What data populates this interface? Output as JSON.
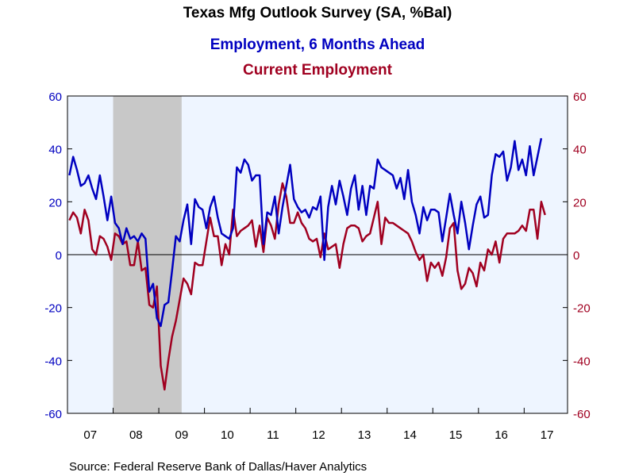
{
  "chart_data": {
    "type": "line",
    "title": "Texas Mfg Outlook Survey (SA, %Bal)",
    "source": "Source:  Federal Reserve Bank of Dallas/Haver Analytics",
    "ylim": [
      -60,
      60
    ],
    "y_ticks": [
      60,
      40,
      20,
      0,
      -20,
      -40,
      -60
    ],
    "y_tick_labels": [
      "60",
      "40",
      "20",
      "0",
      "-20",
      "-40",
      "-60"
    ],
    "xlim": [
      2007.0,
      2017.95
    ],
    "x_ticks": [
      {
        "label": "07",
        "year": 2007
      },
      {
        "label": "08",
        "year": 2008
      },
      {
        "label": "09",
        "year": 2009
      },
      {
        "label": "10",
        "year": 2010
      },
      {
        "label": "11",
        "year": 2011
      },
      {
        "label": "12",
        "year": 2012
      },
      {
        "label": "13",
        "year": 2013
      },
      {
        "label": "14",
        "year": 2014
      },
      {
        "label": "15",
        "year": 2015
      },
      {
        "label": "16",
        "year": 2016
      },
      {
        "label": "17",
        "year": 2017
      }
    ],
    "recession": {
      "start": 2008.0,
      "end": 2009.5
    },
    "grid": false,
    "zero_line": true,
    "x_start": "2007-01",
    "frequency": "monthly",
    "series": [
      {
        "name": "Employment, 6 Months Ahead",
        "color": "#0000C0",
        "values": [
          30,
          37,
          32,
          26,
          27,
          30,
          25,
          21,
          30,
          22,
          13,
          22,
          12,
          10,
          4,
          10,
          6,
          7,
          5,
          8,
          6,
          -14,
          -11,
          -24,
          -27,
          -19,
          -18,
          -6,
          7,
          5,
          13,
          19,
          4,
          21,
          18,
          17,
          10,
          18,
          22,
          14,
          8,
          7,
          6,
          10,
          33,
          31,
          36,
          34,
          28,
          30,
          30,
          4,
          16,
          15,
          22,
          8,
          18,
          26,
          34,
          21,
          18,
          16,
          17,
          14,
          18,
          17,
          22,
          -2,
          18,
          26,
          19,
          28,
          22,
          15,
          25,
          30,
          17,
          26,
          15,
          26,
          25,
          36,
          33,
          32,
          31,
          30,
          25,
          29,
          21,
          32,
          20,
          15,
          8,
          18,
          13,
          17,
          17,
          16,
          5,
          14,
          23,
          15,
          8,
          20,
          12,
          2,
          11,
          19,
          22,
          14,
          15,
          30,
          38,
          37,
          39,
          28,
          33,
          43,
          32,
          36,
          30,
          41,
          30,
          37,
          44
        ]
      },
      {
        "name": "Current Employment",
        "color": "#A00020",
        "values": [
          13,
          16,
          14,
          8,
          17,
          13,
          2,
          0,
          7,
          6,
          3,
          -2,
          8,
          7,
          4,
          5,
          -4,
          -4,
          5,
          -6,
          -5,
          -19,
          -20,
          -12,
          -42,
          -51,
          -40,
          -31,
          -25,
          -17,
          -9,
          -11,
          -15,
          -3,
          -4,
          -4,
          5,
          14,
          7,
          7,
          -4,
          4,
          0,
          17,
          7,
          9,
          10,
          11,
          13,
          3,
          11,
          1,
          14,
          11,
          6,
          19,
          27,
          22,
          12,
          12,
          16,
          12,
          10,
          6,
          5,
          6,
          -1,
          8,
          2,
          3,
          4,
          -5,
          4,
          10,
          11,
          11,
          10,
          5,
          7,
          8,
          14,
          20,
          4,
          14,
          12,
          12,
          11,
          10,
          9,
          8,
          5,
          1,
          -2,
          0,
          -10,
          -3,
          -5,
          -3,
          -8,
          -1,
          10,
          12,
          -6,
          -13,
          -11,
          -5,
          -7,
          -12,
          -3,
          -6,
          2,
          0,
          5,
          -3,
          6,
          8,
          8,
          8,
          9,
          11,
          9,
          17,
          17,
          6,
          20,
          15
        ]
      }
    ]
  }
}
